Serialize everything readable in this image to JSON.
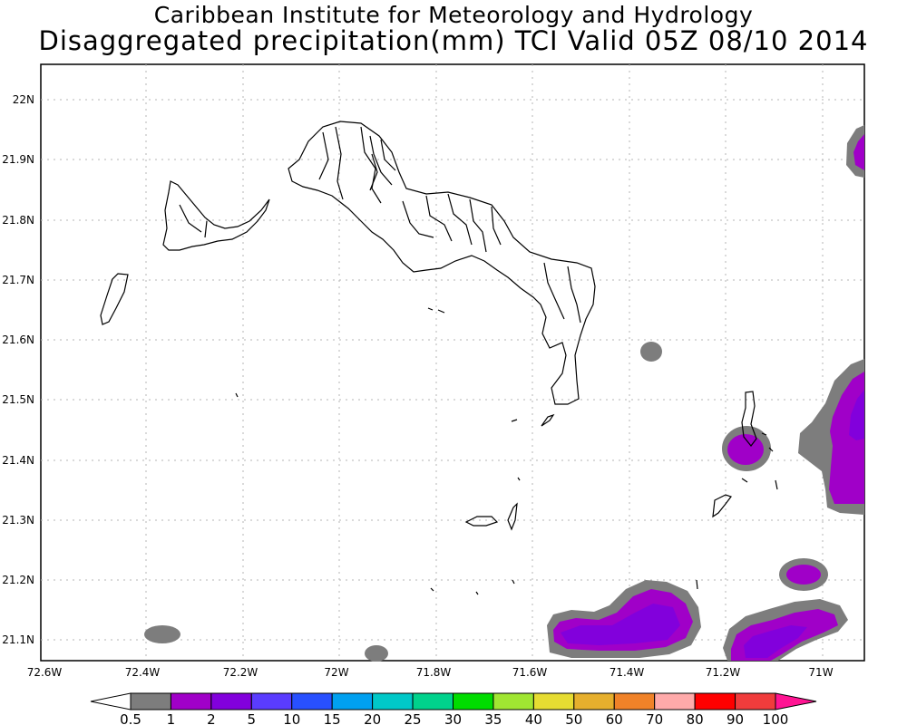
{
  "header": {
    "title_line1": "Caribbean Institute for Meteorology and Hydrology",
    "title_line2": "Disaggregated precipitation(mm) TCI Valid 05Z 08/10 2014"
  },
  "axes": {
    "lon_labels": [
      "72.6W",
      "72.4W",
      "72.2W",
      "72W",
      "71.8W",
      "71.6W",
      "71.4W",
      "71.2W",
      "71W"
    ],
    "lat_labels": [
      "22N",
      "21.9N",
      "21.8N",
      "21.7N",
      "21.6N",
      "21.5N",
      "21.4N",
      "21.3N",
      "21.2N",
      "21.1N"
    ]
  },
  "colorbar": {
    "labels": [
      "0.5",
      "1",
      "2",
      "5",
      "10",
      "15",
      "20",
      "25",
      "30",
      "35",
      "40",
      "50",
      "60",
      "70",
      "80",
      "90",
      "100"
    ],
    "colors": [
      "#7d7d7d",
      "#a000c8",
      "#8200dc",
      "#5a3cff",
      "#2850ff",
      "#00a0f0",
      "#00c8c8",
      "#00d28c",
      "#00dc00",
      "#a0e632",
      "#e6dc32",
      "#e6af2d",
      "#f08228",
      "#ffaaaa",
      "#ff0000",
      "#f03c3c",
      "#ff1493"
    ]
  },
  "precip_colors": {
    "light": "#7d7d7d",
    "one_to_two": "#a000c8",
    "two_to_five": "#8200dc"
  }
}
